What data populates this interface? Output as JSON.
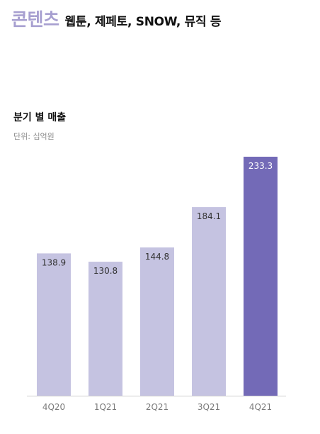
{
  "header": {
    "title": "콘텐츠",
    "subtitle": "웹툰, 제페토, SNOW, 뮤직 등"
  },
  "colors": {
    "accent_title": "#a79fd0",
    "bar": "#c5c3e1",
    "bar_highlight": "#736ab7",
    "baseline": "#cfcfcf"
  },
  "chart_data": {
    "type": "bar",
    "title": "분기 별 매출",
    "unit_label": "단위: 십억원",
    "categories": [
      "4Q20",
      "1Q21",
      "2Q21",
      "3Q21",
      "4Q21"
    ],
    "values": [
      138.9,
      130.8,
      144.8,
      184.1,
      233.3
    ],
    "value_labels": [
      "138.9",
      "130.8",
      "144.8",
      "184.1",
      "233.3"
    ],
    "highlight_index": 4,
    "xlabel": "",
    "ylabel": "",
    "grid": false,
    "legend": "none"
  }
}
